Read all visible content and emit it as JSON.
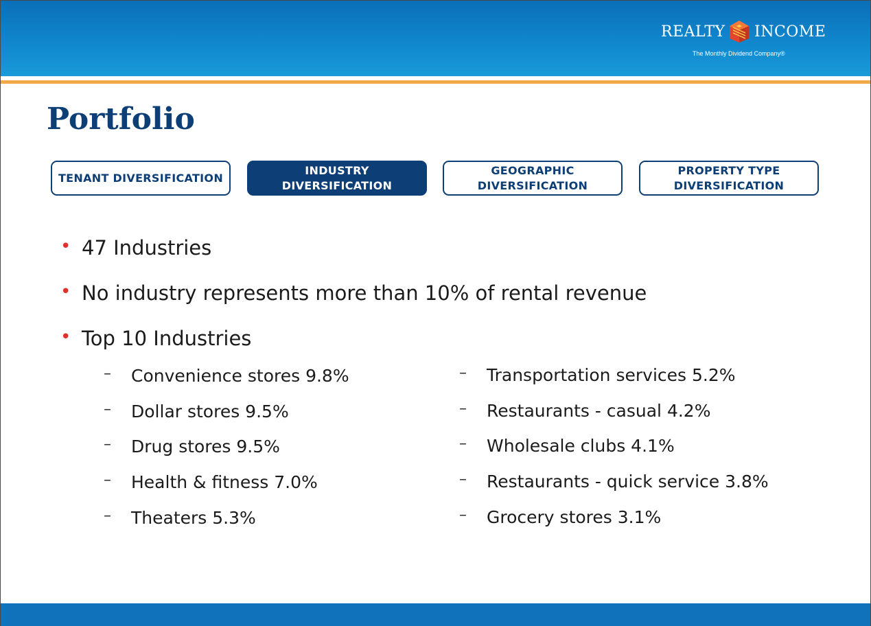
{
  "header": {
    "logo": {
      "word_left": "REALTY",
      "word_right": "INCOME",
      "tagline": "The Monthly Dividend Company®",
      "icon": "realty-income-mark"
    }
  },
  "page": {
    "title": "Portfolio"
  },
  "tabs": [
    {
      "lines": [
        "TENANT DIVERSIFICATION"
      ],
      "active": false
    },
    {
      "lines": [
        "INDUSTRY",
        "DIVERSIFICATION"
      ],
      "active": true
    },
    {
      "lines": [
        "GEOGRAPHIC",
        "DIVERSIFICATION"
      ],
      "active": false
    },
    {
      "lines": [
        "PROPERTY TYPE",
        "DIVERSIFICATION"
      ],
      "active": false
    }
  ],
  "bullets": [
    "47 Industries",
    "No industry represents more than 10% of rental revenue",
    "Top 10 Industries"
  ],
  "top_industries": {
    "left": [
      "Convenience stores 9.8%",
      "Dollar stores 9.5%",
      "Drug stores 9.5%",
      "Health & fitness 7.0%",
      "Theaters 5.3%"
    ],
    "right": [
      "Transportation services 5.2%",
      "Restaurants - casual 4.2%",
      "Wholesale clubs 4.1%",
      "Restaurants - quick service 3.8%",
      "Grocery stores 3.1%"
    ]
  },
  "symbols": {
    "bullet": "•",
    "dash": "–"
  },
  "colors": {
    "header_blue": "#0a6fb8",
    "accent_orange": "#f2a948",
    "navy": "#0d3f76",
    "bullet_red": "#e0302a"
  }
}
